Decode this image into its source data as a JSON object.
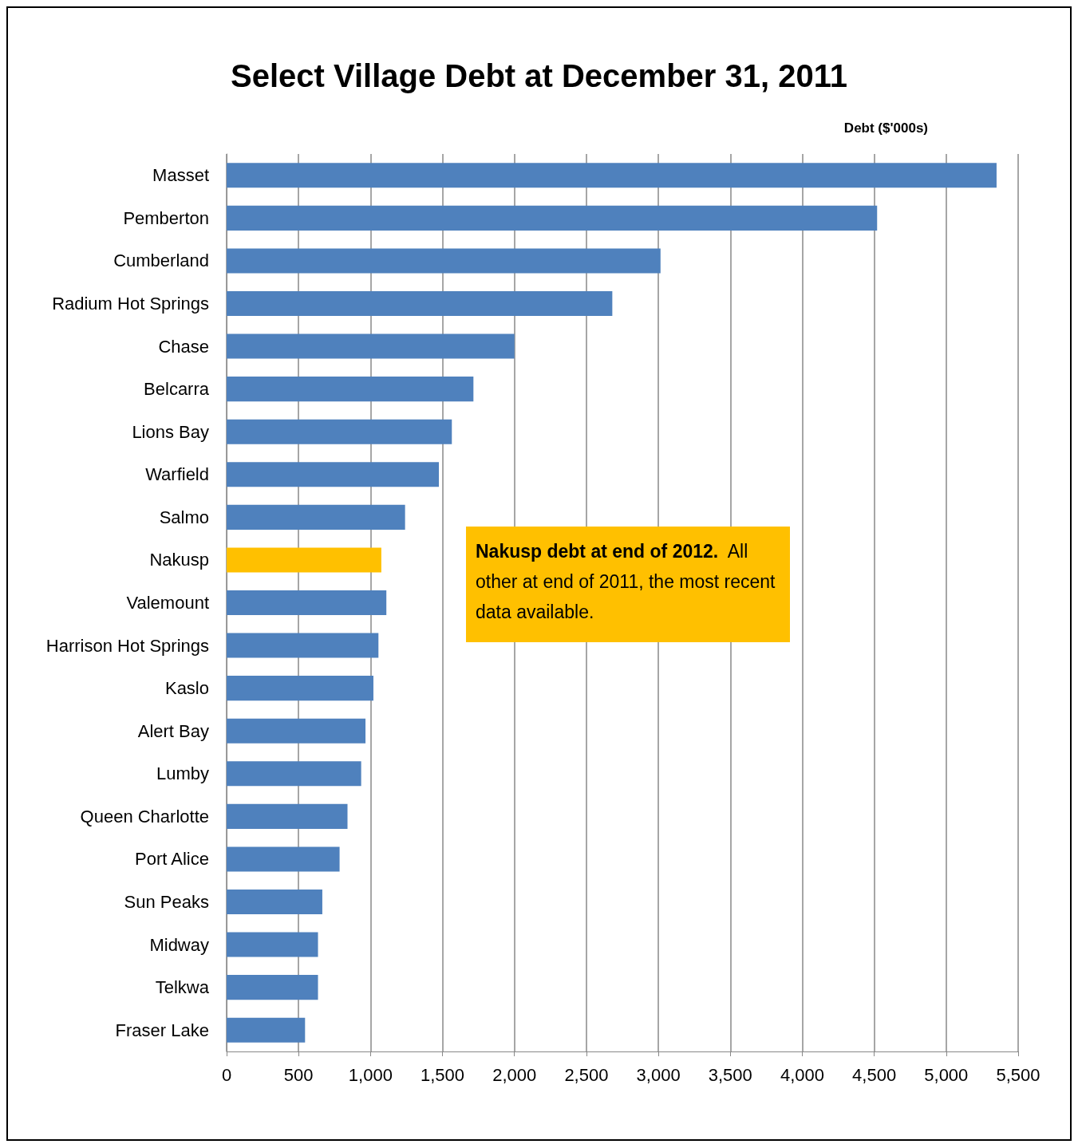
{
  "chart_data": {
    "type": "bar",
    "orientation": "horizontal",
    "title": "Select Village Debt at December 31, 2011",
    "xlabel": "Debt ($'000s)",
    "categories": [
      "Masset",
      "Pemberton",
      "Cumberland",
      "Radium Hot Springs",
      "Chase",
      "Belcarra",
      "Lions Bay",
      "Warfield",
      "Salmo",
      "Nakusp",
      "Valemount",
      "Harrison Hot Springs",
      "Kaslo",
      "Alert Bay",
      "Lumby",
      "Queen Charlotte",
      "Port Alice",
      "Sun Peaks",
      "Midway",
      "Telkwa",
      "Fraser Lake"
    ],
    "values": [
      5350,
      4520,
      3015,
      2680,
      2000,
      1715,
      1565,
      1475,
      1240,
      1075,
      1110,
      1055,
      1020,
      965,
      935,
      840,
      785,
      665,
      635,
      635,
      545
    ],
    "colors": [
      "#4f81bd",
      "#4f81bd",
      "#4f81bd",
      "#4f81bd",
      "#4f81bd",
      "#4f81bd",
      "#4f81bd",
      "#4f81bd",
      "#4f81bd",
      "#ffc000",
      "#4f81bd",
      "#4f81bd",
      "#4f81bd",
      "#4f81bd",
      "#4f81bd",
      "#4f81bd",
      "#4f81bd",
      "#4f81bd",
      "#4f81bd",
      "#4f81bd",
      "#4f81bd"
    ],
    "xlim": [
      0,
      5500
    ],
    "xticks": [
      0,
      500,
      {
        "value": 1000,
        "label": "1,000"
      },
      {
        "value": 1500,
        "label": "1,500"
      },
      {
        "value": 2000,
        "label": "2,000"
      },
      {
        "value": 2500,
        "label": "2,500"
      },
      {
        "value": 3000,
        "label": "3,000"
      },
      {
        "value": 3500,
        "label": "3,500"
      },
      {
        "value": 4000,
        "label": "4,000"
      },
      {
        "value": 4500,
        "label": "4,500"
      },
      {
        "value": 5000,
        "label": "5,000"
      },
      {
        "value": 5500,
        "label": "5,500"
      }
    ],
    "grid": "x",
    "annotations": [
      "Nakusp debt at end of 2012.",
      "All other at end of 2011, the most recent data available."
    ]
  }
}
